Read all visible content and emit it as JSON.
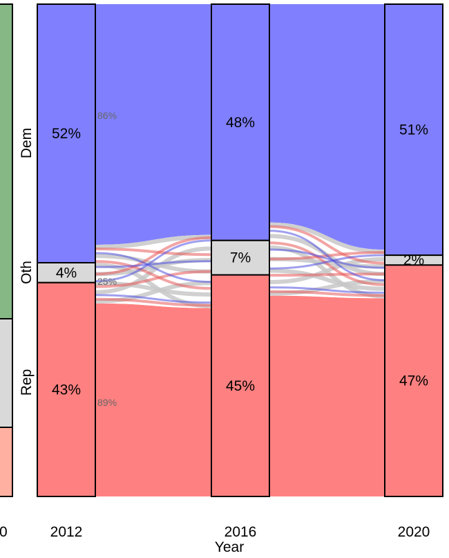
{
  "chart_data": {
    "type": "alluvial",
    "xlabel": "Year",
    "categories_order_top_to_bottom": [
      "Dem",
      "Oth",
      "Rep"
    ],
    "colors": {
      "Dem": "#8080ff",
      "Oth": "#d9d9d9",
      "Rep": "#ff8080",
      "prev_green": "#86b886",
      "prev_red": "#ffb0a0"
    },
    "axes": [
      {
        "year": "2012",
        "shares": {
          "Dem": "52%",
          "Oth": "4%",
          "Rep": "43%"
        },
        "values": {
          "Dem": 52,
          "Oth": 4,
          "Rep": 43
        }
      },
      {
        "year": "2016",
        "shares": {
          "Dem": "48%",
          "Oth": "7%",
          "Rep": "45%"
        },
        "values": {
          "Dem": 48,
          "Oth": 7,
          "Rep": 45
        }
      },
      {
        "year": "2020",
        "shares": {
          "Dem": "51%",
          "Oth": "2%",
          "Rep": "47%"
        },
        "values": {
          "Dem": 51,
          "Oth": 2,
          "Rep": 47
        }
      }
    ],
    "flow_labels": [
      {
        "from": "Dem",
        "text": "86%"
      },
      {
        "from": "Oth",
        "text": "25%"
      },
      {
        "from": "Rep",
        "text": "89%"
      }
    ],
    "y_category_labels": [
      "Dem",
      "Oth",
      "Rep"
    ],
    "partial_left_label": "0"
  }
}
